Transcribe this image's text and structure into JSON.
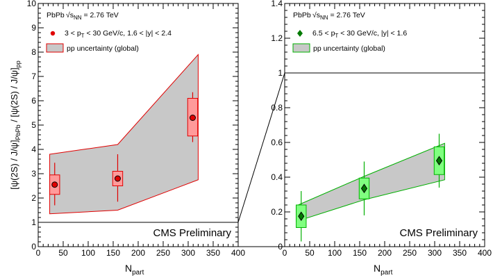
{
  "colors": {
    "left_marker": "#e00000",
    "left_box_fill": "#ff9a9a",
    "left_band_edge": "#e00000",
    "right_marker": "#007a00",
    "right_box_fill": "#80ff80",
    "right_band_edge": "#00b000",
    "band_fill": "#c8c8c8"
  },
  "chart_data": [
    {
      "type": "scatter",
      "panel": "left",
      "ylabel": "[ψ(2S) / J/ψ]PbPb / [ψ(2S) / J/ψ]pp",
      "xlabel": "Npart",
      "xlim": [
        0,
        400
      ],
      "ylim": [
        0,
        10
      ],
      "xticks": [
        "0",
        "50",
        "100",
        "150",
        "200",
        "250",
        "300",
        "350",
        "400"
      ],
      "yticks": [
        "0",
        "1",
        "2",
        "3",
        "4",
        "5",
        "6",
        "7",
        "8",
        "9",
        "10"
      ],
      "annotations": {
        "system": "PbPb",
        "energy": "√sNN = 2.76 TeV",
        "watermark": "CMS Preliminary"
      },
      "reference_line": 1,
      "legend": [
        {
          "type": "marker",
          "label": "3 < pT < 30 GeV/c, 1.6 < |y| < 2.4"
        },
        {
          "type": "band",
          "label": "pp uncertainty (global)"
        }
      ],
      "points": [
        {
          "x": 33,
          "y": 2.55,
          "stat_lo": 1.7,
          "stat_hi": 3.45,
          "syst_lo": 2.15,
          "syst_hi": 2.95,
          "box_halfwidth": 10
        },
        {
          "x": 159,
          "y": 2.8,
          "stat_lo": 1.85,
          "stat_hi": 3.8,
          "syst_lo": 2.5,
          "syst_hi": 3.1,
          "box_halfwidth": 10
        },
        {
          "x": 309,
          "y": 5.3,
          "stat_lo": 4.3,
          "stat_hi": 6.35,
          "syst_lo": 4.55,
          "syst_hi": 6.1,
          "box_halfwidth": 10
        }
      ],
      "band": {
        "x": [
          23,
          159,
          320
        ],
        "upper": [
          3.8,
          4.2,
          7.9
        ],
        "lower": [
          1.35,
          1.5,
          2.75
        ]
      }
    },
    {
      "type": "scatter",
      "panel": "right",
      "ylabel": "",
      "xlabel": "Npart",
      "xlim": [
        0,
        400
      ],
      "ylim": [
        0,
        1.4
      ],
      "xticks": [
        "0",
        "50",
        "100",
        "150",
        "200",
        "250",
        "300",
        "350",
        "400"
      ],
      "yticks": [
        "0",
        "0.2",
        "0.4",
        "0.6",
        "0.8",
        "1",
        "1.2",
        "1.4"
      ],
      "annotations": {
        "system": "PbPb",
        "energy": "√sNN = 2.76 TeV",
        "watermark": "CMS Preliminary"
      },
      "reference_line": 1,
      "legend": [
        {
          "type": "marker",
          "label": "6.5 < pT < 30 GeV/c, |y| < 1.6"
        },
        {
          "type": "band",
          "label": "pp uncertainty (global)"
        }
      ],
      "points": [
        {
          "x": 33,
          "y": 0.175,
          "stat_lo": 0.03,
          "stat_hi": 0.32,
          "syst_lo": 0.11,
          "syst_hi": 0.24,
          "box_halfwidth": 10
        },
        {
          "x": 159,
          "y": 0.335,
          "stat_lo": 0.18,
          "stat_hi": 0.49,
          "syst_lo": 0.275,
          "syst_hi": 0.395,
          "box_halfwidth": 10
        },
        {
          "x": 309,
          "y": 0.495,
          "stat_lo": 0.34,
          "stat_hi": 0.65,
          "syst_lo": 0.415,
          "syst_hi": 0.575,
          "box_halfwidth": 10
        }
      ],
      "band": {
        "x": [
          23,
          159,
          320
        ],
        "upper": [
          0.235,
          0.405,
          0.595
        ],
        "lower": [
          0.145,
          0.27,
          0.385
        ]
      }
    }
  ]
}
